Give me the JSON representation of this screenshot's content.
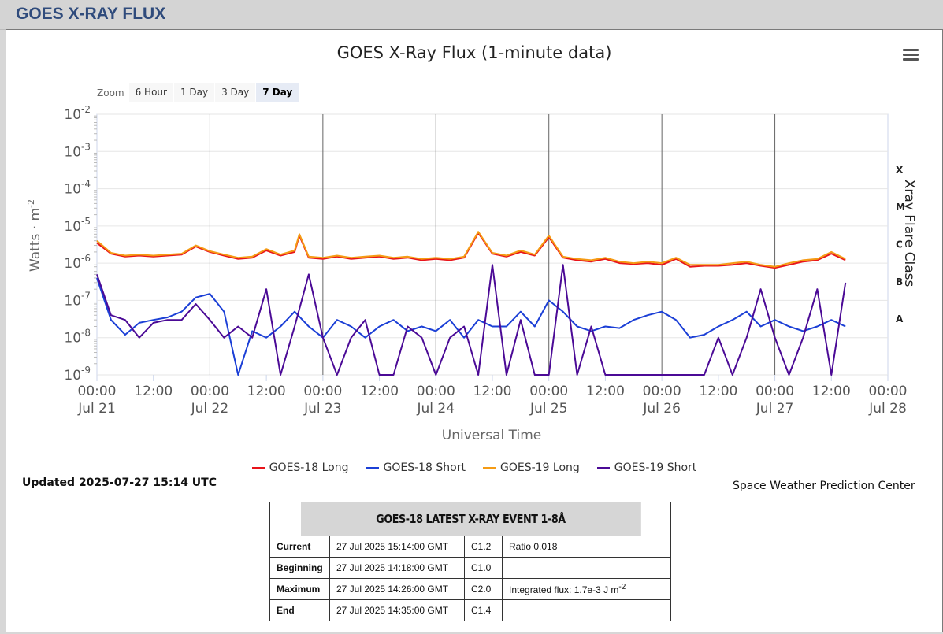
{
  "page": {
    "title": "GOES X-RAY FLUX"
  },
  "chart_data": {
    "type": "line",
    "title": "GOES X-Ray Flux (1-minute data)",
    "xlabel": "Universal Time",
    "ylabel": "Watts · m",
    "ylabel_exponent": "-2",
    "right_label": "Xray Flare Class",
    "y_scale": "log",
    "ylim": [
      1e-09,
      0.01
    ],
    "y_ticks": [
      {
        "value": 0.01,
        "base": "10",
        "exp": "-2"
      },
      {
        "value": 0.001,
        "base": "10",
        "exp": "-3"
      },
      {
        "value": 0.0001,
        "base": "10",
        "exp": "-4"
      },
      {
        "value": 1e-05,
        "base": "10",
        "exp": "-5"
      },
      {
        "value": 1e-06,
        "base": "10",
        "exp": "-6"
      },
      {
        "value": 1e-07,
        "base": "10",
        "exp": "-7"
      },
      {
        "value": 1e-08,
        "base": "10",
        "exp": "-8"
      },
      {
        "value": 1e-09,
        "base": "10",
        "exp": "-9"
      }
    ],
    "flare_classes": [
      {
        "label": "X",
        "value": 0.000316
      },
      {
        "label": "M",
        "value": 3.16e-05
      },
      {
        "label": "C",
        "value": 3.16e-06
      },
      {
        "label": "B",
        "value": 3.16e-07
      },
      {
        "label": "A",
        "value": 3.16e-08
      }
    ],
    "xlim": [
      "2025-07-21 00:00",
      "2025-07-28 00:00"
    ],
    "x_ticks": [
      {
        "time": "2025-07-21 00:00",
        "line1": "00:00",
        "line2": "Jul 21"
      },
      {
        "time": "2025-07-21 12:00",
        "line1": "12:00",
        "line2": ""
      },
      {
        "time": "2025-07-22 00:00",
        "line1": "00:00",
        "line2": "Jul 22"
      },
      {
        "time": "2025-07-22 12:00",
        "line1": "12:00",
        "line2": ""
      },
      {
        "time": "2025-07-23 00:00",
        "line1": "00:00",
        "line2": "Jul 23"
      },
      {
        "time": "2025-07-23 12:00",
        "line1": "12:00",
        "line2": ""
      },
      {
        "time": "2025-07-24 00:00",
        "line1": "00:00",
        "line2": "Jul 24"
      },
      {
        "time": "2025-07-24 12:00",
        "line1": "12:00",
        "line2": ""
      },
      {
        "time": "2025-07-25 00:00",
        "line1": "00:00",
        "line2": "Jul 25"
      },
      {
        "time": "2025-07-25 12:00",
        "line1": "12:00",
        "line2": ""
      },
      {
        "time": "2025-07-26 00:00",
        "line1": "00:00",
        "line2": "Jul 26"
      },
      {
        "time": "2025-07-26 12:00",
        "line1": "12:00",
        "line2": ""
      },
      {
        "time": "2025-07-27 00:00",
        "line1": "00:00",
        "line2": "Jul 27"
      },
      {
        "time": "2025-07-27 12:00",
        "line1": "12:00",
        "line2": ""
      },
      {
        "time": "2025-07-28 00:00",
        "line1": "00:00",
        "line2": "Jul 28"
      }
    ],
    "grid": true,
    "legend_position": "bottom-center",
    "series": [
      {
        "name": "GOES-18 Long",
        "color": "#e8141b",
        "x": [
          "2025-07-21 00:00",
          "2025-07-21 03:00",
          "2025-07-21 06:00",
          "2025-07-21 09:00",
          "2025-07-21 12:00",
          "2025-07-21 15:00",
          "2025-07-21 18:00",
          "2025-07-21 21:00",
          "2025-07-22 00:00",
          "2025-07-22 03:00",
          "2025-07-22 06:00",
          "2025-07-22 09:00",
          "2025-07-22 12:00",
          "2025-07-22 15:00",
          "2025-07-22 18:00",
          "2025-07-22 19:00",
          "2025-07-22 21:00",
          "2025-07-23 00:00",
          "2025-07-23 03:00",
          "2025-07-23 06:00",
          "2025-07-23 09:00",
          "2025-07-23 12:00",
          "2025-07-23 15:00",
          "2025-07-23 18:00",
          "2025-07-23 21:00",
          "2025-07-24 00:00",
          "2025-07-24 03:00",
          "2025-07-24 06:00",
          "2025-07-24 09:00",
          "2025-07-24 12:00",
          "2025-07-24 15:00",
          "2025-07-24 18:00",
          "2025-07-24 21:00",
          "2025-07-25 00:00",
          "2025-07-25 03:00",
          "2025-07-25 06:00",
          "2025-07-25 09:00",
          "2025-07-25 12:00",
          "2025-07-25 15:00",
          "2025-07-25 18:00",
          "2025-07-25 21:00",
          "2025-07-26 00:00",
          "2025-07-26 03:00",
          "2025-07-26 06:00",
          "2025-07-26 09:00",
          "2025-07-26 12:00",
          "2025-07-26 15:00",
          "2025-07-26 18:00",
          "2025-07-26 21:00",
          "2025-07-27 00:00",
          "2025-07-27 03:00",
          "2025-07-27 06:00",
          "2025-07-27 09:00",
          "2025-07-27 12:00",
          "2025-07-27 15:00"
        ],
        "values": [
          3.5e-06,
          1.8e-06,
          1.5e-06,
          1.6e-06,
          1.5e-06,
          1.6e-06,
          1.7e-06,
          2.8e-06,
          2e-06,
          1.6e-06,
          1.3e-06,
          1.4e-06,
          2.2e-06,
          1.6e-06,
          2e-06,
          5.5e-06,
          1.4e-06,
          1.3e-06,
          1.5e-06,
          1.3e-06,
          1.4e-06,
          1.5e-06,
          1.3e-06,
          1.4e-06,
          1.2e-06,
          1.3e-06,
          1.2e-06,
          1.4e-06,
          6.5e-06,
          1.8e-06,
          1.5e-06,
          2e-06,
          1.6e-06,
          5e-06,
          1.4e-06,
          1.2e-06,
          1.1e-06,
          1.3e-06,
          1e-06,
          9.5e-07,
          1e-06,
          9e-07,
          1.3e-06,
          8e-07,
          8.5e-07,
          8.5e-07,
          9e-07,
          1e-06,
          8.5e-07,
          7.5e-07,
          9e-07,
          1.1e-06,
          1.2e-06,
          1.8e-06,
          1.2e-06
        ]
      },
      {
        "name": "GOES-18 Short",
        "color": "#1b3fd6",
        "x": [
          "2025-07-21 00:00",
          "2025-07-21 03:00",
          "2025-07-21 06:00",
          "2025-07-21 09:00",
          "2025-07-21 12:00",
          "2025-07-21 15:00",
          "2025-07-21 18:00",
          "2025-07-21 21:00",
          "2025-07-22 00:00",
          "2025-07-22 03:00",
          "2025-07-22 06:00",
          "2025-07-22 09:00",
          "2025-07-22 12:00",
          "2025-07-22 15:00",
          "2025-07-22 18:00",
          "2025-07-22 21:00",
          "2025-07-23 00:00",
          "2025-07-23 03:00",
          "2025-07-23 06:00",
          "2025-07-23 09:00",
          "2025-07-23 12:00",
          "2025-07-23 15:00",
          "2025-07-23 18:00",
          "2025-07-23 21:00",
          "2025-07-24 00:00",
          "2025-07-24 03:00",
          "2025-07-24 06:00",
          "2025-07-24 09:00",
          "2025-07-24 12:00",
          "2025-07-24 15:00",
          "2025-07-24 18:00",
          "2025-07-24 21:00",
          "2025-07-25 00:00",
          "2025-07-25 03:00",
          "2025-07-25 06:00",
          "2025-07-25 09:00",
          "2025-07-25 12:00",
          "2025-07-25 15:00",
          "2025-07-25 18:00",
          "2025-07-25 21:00",
          "2025-07-26 00:00",
          "2025-07-26 03:00",
          "2025-07-26 06:00",
          "2025-07-26 09:00",
          "2025-07-26 12:00",
          "2025-07-26 15:00",
          "2025-07-26 18:00",
          "2025-07-26 21:00",
          "2025-07-27 00:00",
          "2025-07-27 03:00",
          "2025-07-27 06:00",
          "2025-07-27 09:00",
          "2025-07-27 12:00",
          "2025-07-27 15:00"
        ],
        "values": [
          4e-07,
          3e-08,
          1.2e-08,
          2.5e-08,
          3e-08,
          3.5e-08,
          5e-08,
          1.2e-07,
          1.5e-07,
          5e-08,
          1e-09,
          1.5e-08,
          1e-08,
          2e-08,
          5e-08,
          2e-08,
          1e-08,
          3e-08,
          2e-08,
          1e-08,
          2e-08,
          3e-08,
          1.5e-08,
          2e-08,
          1.5e-08,
          3e-08,
          1e-08,
          3e-08,
          2e-08,
          2e-08,
          5e-08,
          2e-08,
          1e-07,
          5e-08,
          2e-08,
          1.5e-08,
          2e-08,
          1.8e-08,
          3e-08,
          4e-08,
          5e-08,
          3e-08,
          1e-08,
          1.2e-08,
          2e-08,
          3e-08,
          5e-08,
          2e-08,
          3e-08,
          2e-08,
          1.5e-08,
          2e-08,
          3e-08,
          2e-08
        ]
      },
      {
        "name": "GOES-19 Long",
        "color": "#f59b14",
        "x": [
          "2025-07-21 00:00",
          "2025-07-21 03:00",
          "2025-07-21 06:00",
          "2025-07-21 09:00",
          "2025-07-21 12:00",
          "2025-07-21 15:00",
          "2025-07-21 18:00",
          "2025-07-21 21:00",
          "2025-07-22 00:00",
          "2025-07-22 03:00",
          "2025-07-22 06:00",
          "2025-07-22 09:00",
          "2025-07-22 12:00",
          "2025-07-22 15:00",
          "2025-07-22 18:00",
          "2025-07-22 19:00",
          "2025-07-22 21:00",
          "2025-07-23 00:00",
          "2025-07-23 03:00",
          "2025-07-23 06:00",
          "2025-07-23 09:00",
          "2025-07-23 12:00",
          "2025-07-23 15:00",
          "2025-07-23 18:00",
          "2025-07-23 21:00",
          "2025-07-24 00:00",
          "2025-07-24 03:00",
          "2025-07-24 06:00",
          "2025-07-24 09:00",
          "2025-07-24 12:00",
          "2025-07-24 15:00",
          "2025-07-24 18:00",
          "2025-07-24 21:00",
          "2025-07-25 00:00",
          "2025-07-25 03:00",
          "2025-07-25 06:00",
          "2025-07-25 09:00",
          "2025-07-25 12:00",
          "2025-07-25 15:00",
          "2025-07-25 18:00",
          "2025-07-25 21:00",
          "2025-07-26 00:00",
          "2025-07-26 03:00",
          "2025-07-26 06:00",
          "2025-07-26 09:00",
          "2025-07-26 12:00",
          "2025-07-26 15:00",
          "2025-07-26 18:00",
          "2025-07-26 21:00",
          "2025-07-27 00:00",
          "2025-07-27 03:00",
          "2025-07-27 06:00",
          "2025-07-27 09:00",
          "2025-07-27 12:00",
          "2025-07-27 15:00"
        ],
        "values": [
          4e-06,
          1.9e-06,
          1.6e-06,
          1.7e-06,
          1.6e-06,
          1.7e-06,
          1.8e-06,
          3e-06,
          2.1e-06,
          1.7e-06,
          1.4e-06,
          1.5e-06,
          2.4e-06,
          1.7e-06,
          2.2e-06,
          6e-06,
          1.5e-06,
          1.4e-06,
          1.6e-06,
          1.4e-06,
          1.5e-06,
          1.6e-06,
          1.4e-06,
          1.5e-06,
          1.3e-06,
          1.4e-06,
          1.3e-06,
          1.5e-06,
          7e-06,
          1.9e-06,
          1.6e-06,
          2.2e-06,
          1.7e-06,
          5.5e-06,
          1.5e-06,
          1.3e-06,
          1.2e-06,
          1.4e-06,
          1.1e-06,
          1e-06,
          1.1e-06,
          1e-06,
          1.4e-06,
          9e-07,
          9e-07,
          9e-07,
          1e-06,
          1.1e-06,
          9e-07,
          8e-07,
          1e-06,
          1.2e-06,
          1.3e-06,
          2e-06,
          1.3e-06
        ]
      },
      {
        "name": "GOES-19 Short",
        "color": "#4b0a96",
        "x": [
          "2025-07-21 00:00",
          "2025-07-21 03:00",
          "2025-07-21 06:00",
          "2025-07-21 09:00",
          "2025-07-21 12:00",
          "2025-07-21 15:00",
          "2025-07-21 18:00",
          "2025-07-21 21:00",
          "2025-07-22 00:00",
          "2025-07-22 03:00",
          "2025-07-22 06:00",
          "2025-07-22 09:00",
          "2025-07-22 12:00",
          "2025-07-22 15:00",
          "2025-07-22 18:00",
          "2025-07-22 21:00",
          "2025-07-23 00:00",
          "2025-07-23 03:00",
          "2025-07-23 06:00",
          "2025-07-23 09:00",
          "2025-07-23 12:00",
          "2025-07-23 15:00",
          "2025-07-23 18:00",
          "2025-07-23 21:00",
          "2025-07-24 00:00",
          "2025-07-24 03:00",
          "2025-07-24 06:00",
          "2025-07-24 09:00",
          "2025-07-24 12:00",
          "2025-07-24 15:00",
          "2025-07-24 18:00",
          "2025-07-24 21:00",
          "2025-07-25 00:00",
          "2025-07-25 03:00",
          "2025-07-25 06:00",
          "2025-07-25 09:00",
          "2025-07-25 12:00",
          "2025-07-25 15:00",
          "2025-07-25 18:00",
          "2025-07-25 21:00",
          "2025-07-26 00:00",
          "2025-07-26 03:00",
          "2025-07-26 06:00",
          "2025-07-26 09:00",
          "2025-07-26 12:00",
          "2025-07-26 15:00",
          "2025-07-26 18:00",
          "2025-07-26 21:00",
          "2025-07-27 00:00",
          "2025-07-27 03:00",
          "2025-07-27 06:00",
          "2025-07-27 09:00",
          "2025-07-27 12:00",
          "2025-07-27 15:00"
        ],
        "values": [
          5e-07,
          4e-08,
          3e-08,
          1e-08,
          2.5e-08,
          3e-08,
          3e-08,
          8e-08,
          3e-08,
          1e-08,
          2e-08,
          1e-08,
          2e-07,
          1e-09,
          2e-08,
          5e-07,
          1e-08,
          1e-09,
          1e-08,
          3e-08,
          1e-09,
          1e-09,
          2e-08,
          1e-08,
          1e-09,
          1e-08,
          2e-08,
          1e-09,
          9e-07,
          1e-09,
          3e-08,
          1e-09,
          1e-09,
          9e-07,
          1e-09,
          2e-08,
          1e-09,
          1e-09,
          1e-09,
          1e-09,
          1e-09,
          1e-09,
          1e-09,
          1e-09,
          1e-08,
          1e-09,
          1e-08,
          2e-07,
          1e-08,
          1e-09,
          1e-08,
          2e-07,
          1e-09,
          3e-07
        ]
      }
    ]
  },
  "zoom": {
    "label": "Zoom",
    "buttons": [
      {
        "label": "6 Hour",
        "active": false
      },
      {
        "label": "1 Day",
        "active": false
      },
      {
        "label": "3 Day",
        "active": false
      },
      {
        "label": "7 Day",
        "active": true
      }
    ]
  },
  "updated": "Updated 2025-07-27 15:14 UTC",
  "credit": "Space Weather Prediction Center",
  "event_table": {
    "title": "GOES-18 LATEST X-RAY EVENT 1-8Å",
    "rows": [
      {
        "label": "Current",
        "time": "27 Jul 2025 15:14:00 GMT",
        "class": "C1.2",
        "note": "Ratio 0.018"
      },
      {
        "label": "Beginning",
        "time": "27 Jul 2025 14:18:00 GMT",
        "class": "C1.0",
        "note": ""
      },
      {
        "label": "Maximum",
        "time": "27 Jul 2025 14:26:00 GMT",
        "class": "C2.0",
        "note": "Integrated flux: 1.7e-3 J m",
        "note_sup": "-2"
      },
      {
        "label": "End",
        "time": "27 Jul 2025 14:35:00 GMT",
        "class": "C1.4",
        "note": ""
      }
    ]
  }
}
